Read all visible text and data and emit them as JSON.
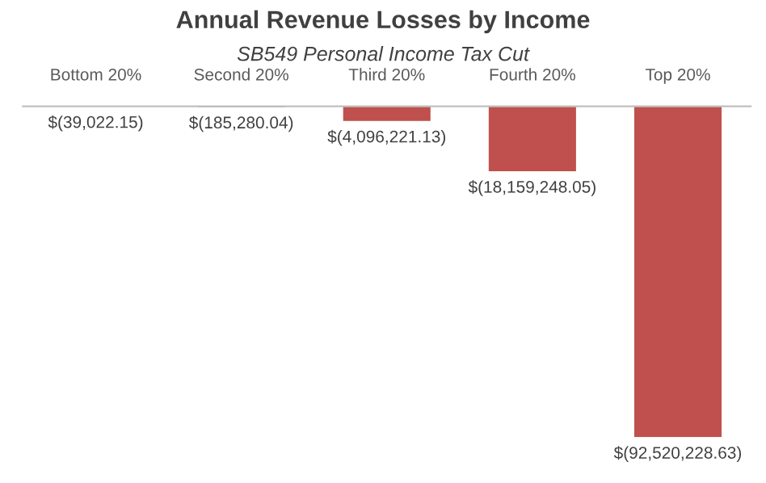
{
  "chart_data": {
    "type": "bar",
    "title": "Annual Revenue Losses by Income",
    "subtitle": "SB549 Personal Income Tax Cut",
    "categories": [
      "Bottom 20%",
      "Second 20%",
      "Third 20%",
      "Fourth 20%",
      "Top 20%"
    ],
    "values": [
      -39022.15,
      -185280.04,
      -4096221.13,
      -18159248.05,
      -92520228.63
    ],
    "value_labels": [
      "$(39,022.15)",
      "$(185,280.04)",
      "$(4,096,221.13)",
      "$(18,159,248.05)",
      "$(92,520,228.63)"
    ],
    "color": "#c0504d",
    "grid": false,
    "legend": false
  }
}
